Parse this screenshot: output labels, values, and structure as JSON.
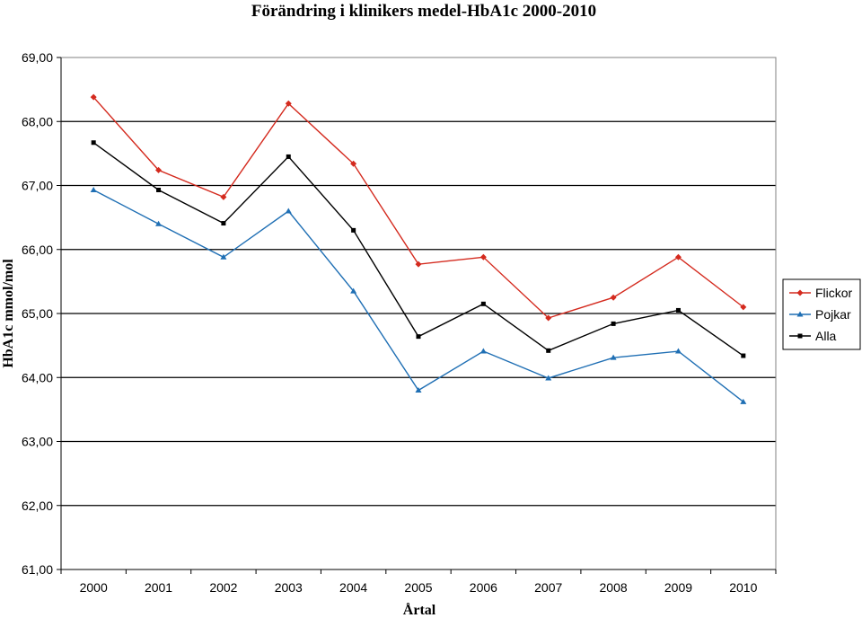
{
  "chart_data": {
    "type": "line",
    "title": "Förändring i klinikers medel-HbA1c 2000-2010",
    "xlabel": "Årtal",
    "ylabel": "HbA1c mmol/mol",
    "categories": [
      "2000",
      "2001",
      "2002",
      "2003",
      "2004",
      "2005",
      "2006",
      "2007",
      "2008",
      "2009",
      "2010"
    ],
    "ylim": [
      61,
      69
    ],
    "yticks": [
      "61,00",
      "62,00",
      "63,00",
      "64,00",
      "65,00",
      "66,00",
      "67,00",
      "68,00",
      "69,00"
    ],
    "grid": true,
    "legend_position": "right",
    "series": [
      {
        "name": "Flickor",
        "color": "#d42a1e",
        "marker": "diamond",
        "values": [
          68.38,
          67.24,
          66.82,
          68.28,
          67.34,
          65.77,
          65.88,
          64.93,
          65.25,
          65.88,
          65.1
        ]
      },
      {
        "name": "Pojkar",
        "color": "#1f6fb4",
        "marker": "triangle",
        "values": [
          66.93,
          66.4,
          65.88,
          66.6,
          65.35,
          63.8,
          64.41,
          63.99,
          64.31,
          64.41,
          63.62
        ]
      },
      {
        "name": "Alla",
        "color": "#000000",
        "marker": "square",
        "values": [
          67.67,
          66.93,
          66.41,
          67.45,
          66.3,
          64.64,
          65.15,
          64.42,
          64.84,
          65.05,
          64.34
        ]
      }
    ]
  }
}
